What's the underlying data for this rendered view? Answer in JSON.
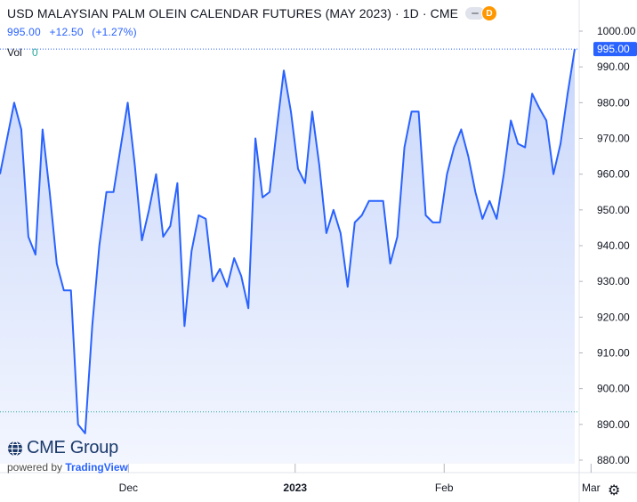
{
  "header": {
    "title": "USD MALAYSIAN PALM OLEIN CALENDAR FUTURES (MAY 2023) · 1D · CME",
    "badge": "D",
    "last": "995.00",
    "change": "+12.50",
    "change_pct": "(+1.27%)",
    "vol_label": "Vol",
    "vol_value": "0"
  },
  "branding": {
    "logo_text": "CME Group",
    "powered_by": "powered by",
    "provider": "TradingView"
  },
  "icons": {
    "globe": "globe-icon",
    "settings": "gear-icon"
  },
  "colors": {
    "line": "#2962ff",
    "area_top": "#c9d7fb",
    "area_bottom": "#f3f6fe",
    "price_label_bg": "#2962ff",
    "base_line": "#26a69a",
    "delay_badge": "#ff9800"
  },
  "chart_data": {
    "type": "area",
    "title": "USD MALAYSIAN PALM OLEIN CALENDAR FUTURES (MAY 2023) · 1D · CME",
    "xlabel": "",
    "ylabel": "",
    "ylim": [
      879,
      1001
    ],
    "grid": false,
    "last_value": 995.0,
    "last_value_label": "995.00",
    "base_value": 893.5,
    "y_ticks": [
      880,
      890,
      900,
      910,
      920,
      930,
      940,
      950,
      960,
      970,
      980,
      990,
      1000
    ],
    "y_tick_labels": [
      "880.00",
      "890.00",
      "900.00",
      "910.00",
      "920.00",
      "930.00",
      "940.00",
      "950.00",
      "960.00",
      "970.00",
      "980.00",
      "990.00",
      "1000.00"
    ],
    "x_ticks": [
      {
        "label": "Dec",
        "index": 18.1
      },
      {
        "label": "2023",
        "index": 41.6
      },
      {
        "label": "Feb",
        "index": 62.6
      },
      {
        "label": "Mar",
        "index": 83.3
      }
    ],
    "series": [
      {
        "values": [
          960,
          970,
          980,
          972.5,
          942.5,
          937.5,
          972.5,
          955,
          935,
          927.5,
          927.5,
          890,
          887.5,
          917.5,
          940,
          955,
          955,
          967.5,
          980,
          962.5,
          941.5,
          950,
          960,
          942.5,
          945.5,
          957.5,
          917.5,
          938.5,
          948.5,
          947.5,
          930,
          933.5,
          928.5,
          936.5,
          931.5,
          922.5,
          970,
          953.5,
          955,
          972.5,
          989,
          977.5,
          961.5,
          957.5,
          977.5,
          962.5,
          943.5,
          950,
          943.5,
          928.5,
          946.5,
          948.5,
          952.5,
          952.5,
          952.5,
          935,
          942.5,
          967.5,
          977.5,
          977.5,
          948.5,
          946.5,
          946.5,
          960,
          967.5,
          972.5,
          965,
          955,
          947.5,
          952.5,
          947.5,
          960,
          975,
          968.5,
          967.5,
          982.5,
          978.5,
          975,
          960,
          968.5,
          982.5,
          995
        ]
      }
    ]
  }
}
